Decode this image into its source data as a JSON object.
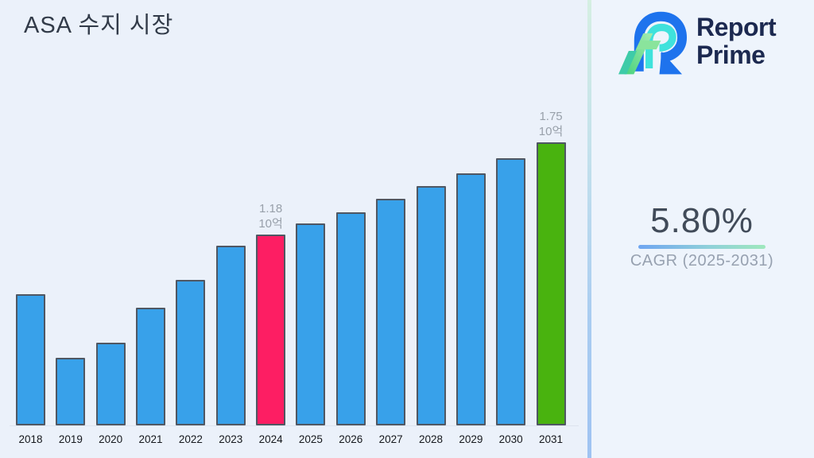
{
  "header": {
    "title": "ASA 수지 시장"
  },
  "logo": {
    "line1": "Report",
    "line2": "Prime",
    "text_color": "#1c2950",
    "mark_colors": {
      "blue": "#1e73ed",
      "cyan": "#3fe2dc",
      "green_light": "#a5ecb0",
      "green": "#49d27d",
      "teal": "#3ecba8"
    }
  },
  "stats": {
    "cagr_value": "5.80%",
    "cagr_label": "CAGR (2025-2031)",
    "underline_gradient": [
      "#6fa5f1",
      "#9fe8bd"
    ]
  },
  "panel": {
    "divider_gradient": [
      "#d5efe2",
      "#9fc3f2"
    ],
    "left_background": "#ebf1fa",
    "right_background": "#eef4fc"
  },
  "chart_data": {
    "type": "bar",
    "title": "ASA 수지 시장",
    "categories": [
      "2018",
      "2019",
      "2020",
      "2021",
      "2022",
      "2023",
      "2024",
      "2025",
      "2026",
      "2027",
      "2028",
      "2029",
      "2030",
      "2031"
    ],
    "values": [
      0.81,
      0.42,
      0.51,
      0.73,
      0.9,
      1.11,
      1.18,
      1.25,
      1.32,
      1.4,
      1.48,
      1.56,
      1.65,
      1.75
    ],
    "unit": "10억",
    "ylim": [
      0,
      1.9
    ],
    "grid": false,
    "legend": false,
    "xlabel": "",
    "ylabel": "",
    "bar_colors": [
      "#38a1ea",
      "#38a1ea",
      "#38a1ea",
      "#38a1ea",
      "#38a1ea",
      "#38a1ea",
      "#fd1e63",
      "#38a1ea",
      "#38a1ea",
      "#38a1ea",
      "#38a1ea",
      "#38a1ea",
      "#38a1ea",
      "#49b30f"
    ],
    "bar_border_color": "#4f5763",
    "axis_label_color": "#15181d",
    "annotation_color": "#98a0aa",
    "annotations": [
      {
        "index": 6,
        "lines": [
          "1.18",
          "10억"
        ]
      },
      {
        "index": 13,
        "lines": [
          "1.75",
          "10억"
        ]
      }
    ]
  }
}
